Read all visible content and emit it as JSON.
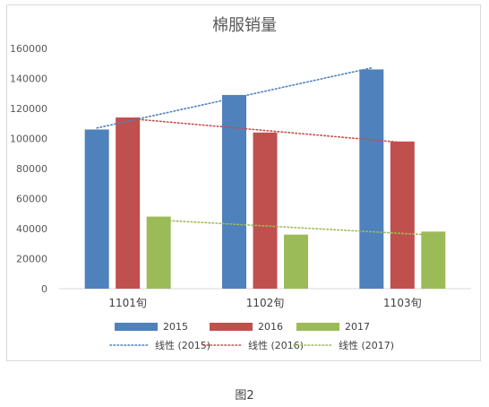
{
  "chart_data": {
    "type": "bar",
    "title": "棉服销量",
    "categories": [
      "1101旬",
      "1102旬",
      "1103旬"
    ],
    "series": [
      {
        "name": "2015",
        "color": "#4f81bd",
        "values": [
          106000,
          129000,
          146000
        ]
      },
      {
        "name": "2016",
        "color": "#c0504d",
        "values": [
          114000,
          104000,
          98000
        ]
      },
      {
        "name": "2017",
        "color": "#9bbb59",
        "values": [
          48000,
          36000,
          38000
        ]
      }
    ],
    "trendlines": [
      {
        "name": "线性 (2015)",
        "color": "#4f81bd",
        "series_index": 0
      },
      {
        "name": "线性 (2016)",
        "color": "#c0504d",
        "series_index": 1
      },
      {
        "name": "线性 (2017)",
        "color": "#9bbb59",
        "series_index": 2
      }
    ],
    "ylim": [
      0,
      160000
    ],
    "yticks": [
      "0",
      "20000",
      "40000",
      "60000",
      "80000",
      "100000",
      "120000",
      "140000",
      "160000"
    ],
    "xlabel": "",
    "ylabel": "",
    "grid": false,
    "legend_position": "bottom"
  },
  "caption": "图2"
}
